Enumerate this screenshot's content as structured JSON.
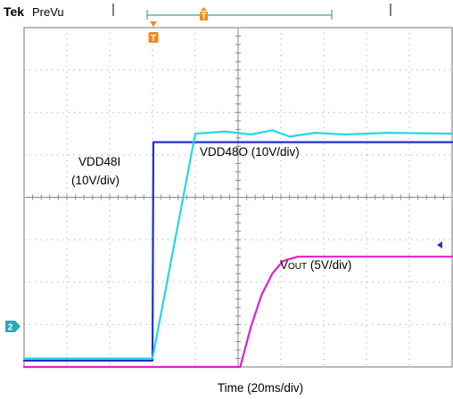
{
  "header": {
    "brand": "Tek",
    "mode": "PreVu"
  },
  "colors": {
    "vdd48i": "#1f2fd0",
    "vdd48o": "#25d6e6",
    "vout": "#e020c8",
    "trigger": "#f08a1e",
    "channel_marker": "#2aa8b8",
    "grid": "#9a9a9a",
    "record_bar": "#3aa4a0"
  },
  "trigger_marker": {
    "label": "T"
  },
  "record_marker": {
    "label": "T"
  },
  "channel_marker": {
    "label": "2"
  },
  "chart_data": {
    "type": "line",
    "xlabel": "Time (20ms/div)",
    "x_divisions": 10,
    "y_divisions": 8,
    "grid": true,
    "annotations": [
      {
        "id": "vdd48i",
        "lines": [
          "VDD48I",
          "(10V/div)"
        ]
      },
      {
        "id": "vdd48o",
        "text": "VDD48O (10V/div)"
      },
      {
        "id": "vout",
        "prefix": "V",
        "subscript": "OUT",
        "suffix": " (5V/div)"
      }
    ],
    "series": [
      {
        "id": "vdd48i",
        "x": [
          0,
          3.0,
          3.02,
          4.5,
          10
        ],
        "y": [
          0.15,
          0.15,
          5.3,
          5.3,
          5.3
        ]
      },
      {
        "id": "vdd48o",
        "x": [
          0,
          3.0,
          4.0,
          4.7,
          5.3,
          5.8,
          6.2,
          6.8,
          7.5,
          8.5,
          10
        ],
        "y": [
          0.2,
          0.2,
          5.5,
          5.55,
          5.48,
          5.58,
          5.43,
          5.52,
          5.48,
          5.52,
          5.5
        ]
      },
      {
        "id": "vout",
        "x": [
          0,
          5.05,
          5.3,
          5.55,
          5.8,
          6.05,
          6.4,
          6.8,
          10
        ],
        "y": [
          0.0,
          0.0,
          0.95,
          1.7,
          2.2,
          2.5,
          2.6,
          2.6,
          2.6
        ]
      }
    ]
  }
}
